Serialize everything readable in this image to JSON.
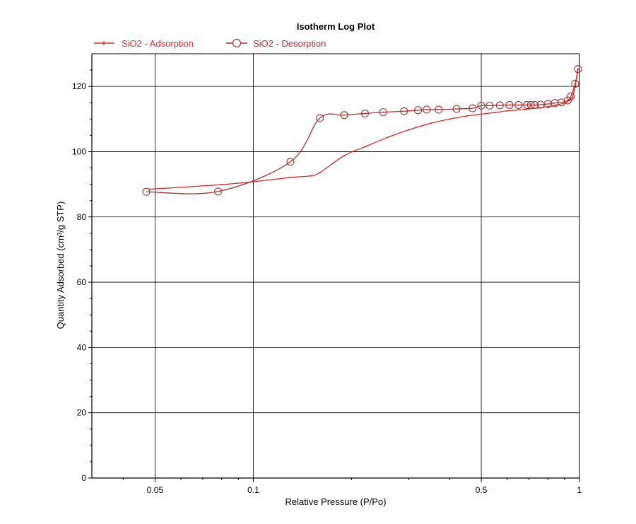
{
  "chart_data": {
    "type": "line",
    "title": "Isotherm Log Plot",
    "xlabel": "Relative Pressure (P/Po)",
    "ylabel": "Quantity Adsorbed (cm³/g STP)",
    "x_scale": "log",
    "xlim": [
      0.032,
      1.0
    ],
    "ylim": [
      0,
      130
    ],
    "x_ticks": [
      0.05,
      0.1,
      0.5,
      1
    ],
    "x_tick_labels": [
      "0.05",
      "0.1",
      "0.5",
      "1"
    ],
    "y_ticks": [
      0,
      20,
      40,
      60,
      80,
      100,
      120
    ],
    "y_tick_labels": [
      "0",
      "20",
      "40",
      "60",
      "80",
      "100",
      "120"
    ],
    "grid": true,
    "legend_position": "top-left",
    "colors": {
      "adsorption": "#dd2b2b",
      "desorption": "#a83232",
      "grid": "#000000"
    },
    "series": [
      {
        "name": "SiO2 - Adsorption",
        "marker": "tick",
        "x": [
          0.048,
          0.08,
          0.1,
          0.13,
          0.15,
          0.16,
          0.19,
          0.22,
          0.26,
          0.3,
          0.35,
          0.4,
          0.45,
          0.5,
          0.55,
          0.6,
          0.65,
          0.7,
          0.75,
          0.8,
          0.85,
          0.9,
          0.93,
          0.95,
          0.97,
          0.99
        ],
        "y": [
          88.5,
          89.9,
          90.8,
          92.1,
          92.6,
          93.6,
          98.8,
          101.5,
          104.5,
          106.7,
          108.7,
          110.0,
          110.9,
          111.5,
          112.0,
          112.5,
          112.8,
          113.1,
          113.4,
          113.8,
          114.3,
          114.9,
          115.7,
          116.6,
          120.0,
          125.3
        ]
      },
      {
        "name": "SiO2 - Desorption",
        "marker": "circle",
        "x": [
          0.99,
          0.97,
          0.94,
          0.92,
          0.88,
          0.84,
          0.8,
          0.76,
          0.73,
          0.71,
          0.69,
          0.65,
          0.61,
          0.57,
          0.53,
          0.5,
          0.47,
          0.42,
          0.37,
          0.34,
          0.32,
          0.29,
          0.25,
          0.22,
          0.19,
          0.16,
          0.13,
          0.078,
          0.047
        ],
        "y": [
          125.3,
          120.8,
          116.9,
          115.7,
          115.1,
          114.9,
          114.6,
          114.4,
          114.3,
          114.3,
          114.3,
          114.3,
          114.3,
          114.2,
          114.1,
          114.1,
          113.3,
          113.1,
          112.9,
          112.9,
          112.7,
          112.4,
          112.1,
          111.7,
          111.2,
          110.3,
          96.9,
          87.8,
          87.7
        ]
      }
    ]
  }
}
